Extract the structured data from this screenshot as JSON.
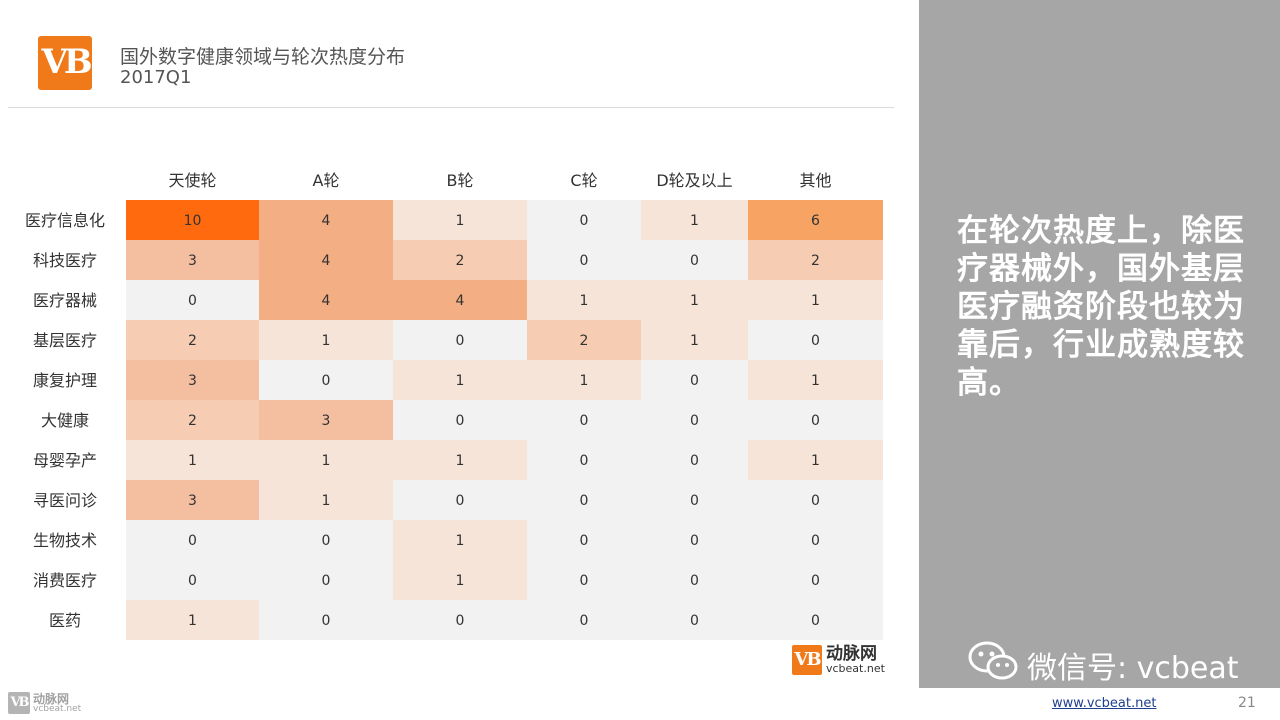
{
  "header": {
    "logo_text": "VB",
    "title": "国外数字健康领域与轮次热度分布",
    "subtitle": "2017Q1"
  },
  "chart_data": {
    "type": "heatmap",
    "columns": [
      "天使轮",
      "A轮",
      "B轮",
      "C轮",
      "D轮及以上",
      "其他"
    ],
    "rows": [
      "医疗信息化",
      "科技医疗",
      "医疗器械",
      "基层医疗",
      "康复护理",
      "大健康",
      "母婴孕产",
      "寻医问诊",
      "生物技术",
      "消费医疗",
      "医药"
    ],
    "values": [
      [
        10,
        4,
        1,
        0,
        1,
        6
      ],
      [
        3,
        4,
        2,
        0,
        0,
        2
      ],
      [
        0,
        4,
        4,
        1,
        1,
        1
      ],
      [
        2,
        1,
        0,
        2,
        1,
        0
      ],
      [
        3,
        0,
        1,
        1,
        0,
        1
      ],
      [
        2,
        3,
        0,
        0,
        0,
        0
      ],
      [
        1,
        1,
        1,
        0,
        0,
        1
      ],
      [
        3,
        1,
        0,
        0,
        0,
        0
      ],
      [
        0,
        0,
        1,
        0,
        0,
        0
      ],
      [
        0,
        0,
        1,
        0,
        0,
        0
      ],
      [
        1,
        0,
        0,
        0,
        0,
        0
      ]
    ],
    "color_scale": [
      "#f2f2f2",
      "#f7e4d9",
      "#f6cdb2",
      "#f4bfa0",
      "#f4ae83",
      "#f7a363",
      "#ff6a0e"
    ]
  },
  "panel": {
    "text": "在轮次热度上，除医疗器械外，国外基层医疗融资阶段也较为靠后，行业成熟度较高。",
    "wechat_label": "微信号: vcbeat"
  },
  "brand": {
    "logo_text": "VB",
    "cn": "动脉网",
    "en": "vcbeat.net"
  },
  "footer": {
    "url": "www.vcbeat.net",
    "page": "21"
  }
}
